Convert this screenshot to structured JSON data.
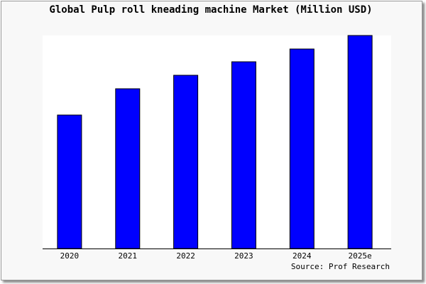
{
  "chart_data": {
    "type": "bar",
    "title": "Global Pulp roll kneading machine Market (Million USD)",
    "categories": [
      "2020",
      "2021",
      "2022",
      "2023",
      "2024",
      "2025e"
    ],
    "values": [
      188,
      225,
      244,
      263,
      281,
      300
    ],
    "ylim": [
      0,
      300
    ],
    "xlabel": "",
    "ylabel": "",
    "grid": false,
    "source": "Source: Prof Research",
    "colors": {
      "bar": "#0000ff",
      "bar_stroke": "#000000",
      "plot_bg": "#ffffff",
      "page_bg": "#f8f8f8"
    }
  }
}
